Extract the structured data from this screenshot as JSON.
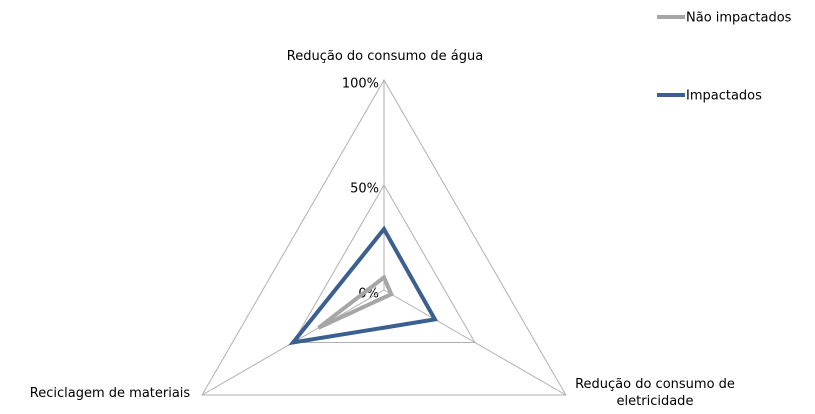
{
  "chart_data": {
    "type": "radar",
    "categories": [
      "Redução do consumo de água",
      "Redução do consumo de eletricidade",
      "Reciclagem de materiais"
    ],
    "series": [
      {
        "name": "Não impactados",
        "color": "#a6a6a6",
        "values": [
          6,
          4,
          36
        ]
      },
      {
        "name": "Impactados",
        "color": "#3b5f8e",
        "values": [
          29,
          28,
          50
        ]
      }
    ],
    "ylim": [
      0,
      100
    ],
    "yticks": [
      {
        "value": 0,
        "label": "0%"
      },
      {
        "value": 50,
        "label": "50%"
      },
      {
        "value": 100,
        "label": "100%"
      }
    ],
    "grid": true
  }
}
